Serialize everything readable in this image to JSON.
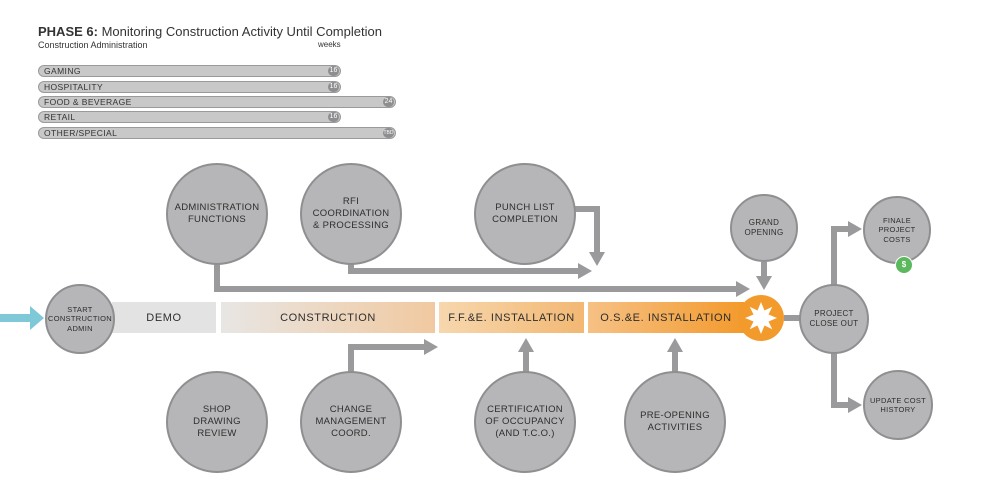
{
  "header": {
    "phase": "PHASE 6:",
    "title": "Monitoring Construction Activity Until Completion",
    "subtitle": "Construction Administration",
    "weeks_label": "weeks"
  },
  "durations": [
    {
      "label": "GAMING",
      "value": "16",
      "weeks": 16
    },
    {
      "label": "HOSPITALITY",
      "value": "16",
      "weeks": 16
    },
    {
      "label": "FOOD & BEVERAGE",
      "value": "24",
      "weeks": 24
    },
    {
      "label": "RETAIL",
      "value": "16",
      "weeks": 16
    },
    {
      "label": "OTHER/SPECIAL",
      "value": "TBD"
    }
  ],
  "timeline": {
    "segments": [
      "DEMO",
      "CONSTRUCTION",
      "F.F.&E. INSTALLATION",
      "O.S.&E. INSTALLATION"
    ]
  },
  "nodes": {
    "start": "START\nCONSTRUCTION\nADMIN",
    "admin_functions": "ADMINISTRATION\nFUNCTIONS",
    "rfi": "RFI\nCOORDINATION\n& PROCESSING",
    "punch_list": "PUNCH LIST\nCOMPLETION",
    "grand_opening": "GRAND\nOPENING",
    "finale_costs": "FINALE\nPROJECT\nCOSTS",
    "close_out": "PROJECT\nCLOSE OUT",
    "update_cost": "UPDATE COST\nHISTORY",
    "shop_drawing": "SHOP\nDRAWING\nREVIEW",
    "change_mgmt": "CHANGE\nMANAGEMENT\nCOORD.",
    "cert_occupancy": "CERTIFICATION\nOF OCCUPANCY\n(AND T.C.O.)",
    "pre_opening": "PRE-OPENING\nACTIVITIES"
  },
  "badges": {
    "dollar": "$"
  },
  "colors": {
    "node_fill": "#b6b6b8",
    "arrow": "#9a9a9c",
    "accent_orange": "#f39a2c",
    "start_arrow": "#7ec8d8",
    "dollar_badge": "#5cb85c"
  }
}
